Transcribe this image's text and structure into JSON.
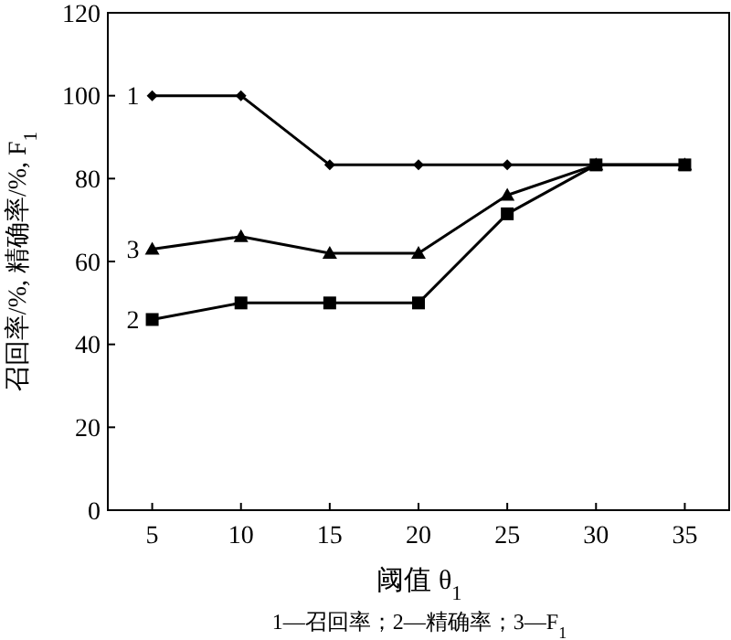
{
  "chart_data": {
    "type": "line",
    "xlabel": "阈值 θ$_{1}$",
    "ylabel": "召回率/%, 精确率/%, F$_{1}$",
    "x": [
      5,
      10,
      15,
      20,
      25,
      30,
      35
    ],
    "series": [
      {
        "name": "1",
        "color": "#000000",
        "marker": "diamond",
        "values": [
          100,
          100,
          83.3,
          83.3,
          83.3,
          83.3,
          83.3
        ]
      },
      {
        "name": "2",
        "color": "#000000",
        "marker": "square",
        "values": [
          46,
          50,
          50,
          50,
          71.5,
          83.3,
          83.3
        ]
      },
      {
        "name": "3",
        "color": "#000000",
        "marker": "triangle",
        "values": [
          63,
          66,
          62,
          62,
          76,
          83.3,
          83.3
        ]
      }
    ],
    "xlim": [
      2.5,
      37.5
    ],
    "xticks": [
      5,
      10,
      15,
      20,
      25,
      30,
      35
    ],
    "ylim": [
      0,
      120
    ],
    "yticks": [
      0,
      20,
      40,
      60,
      80,
      100,
      120
    ],
    "grid": false,
    "line_style": "solid",
    "annotations": [
      "1—召回率；2—精确率；3—F$_{1}$"
    ]
  }
}
